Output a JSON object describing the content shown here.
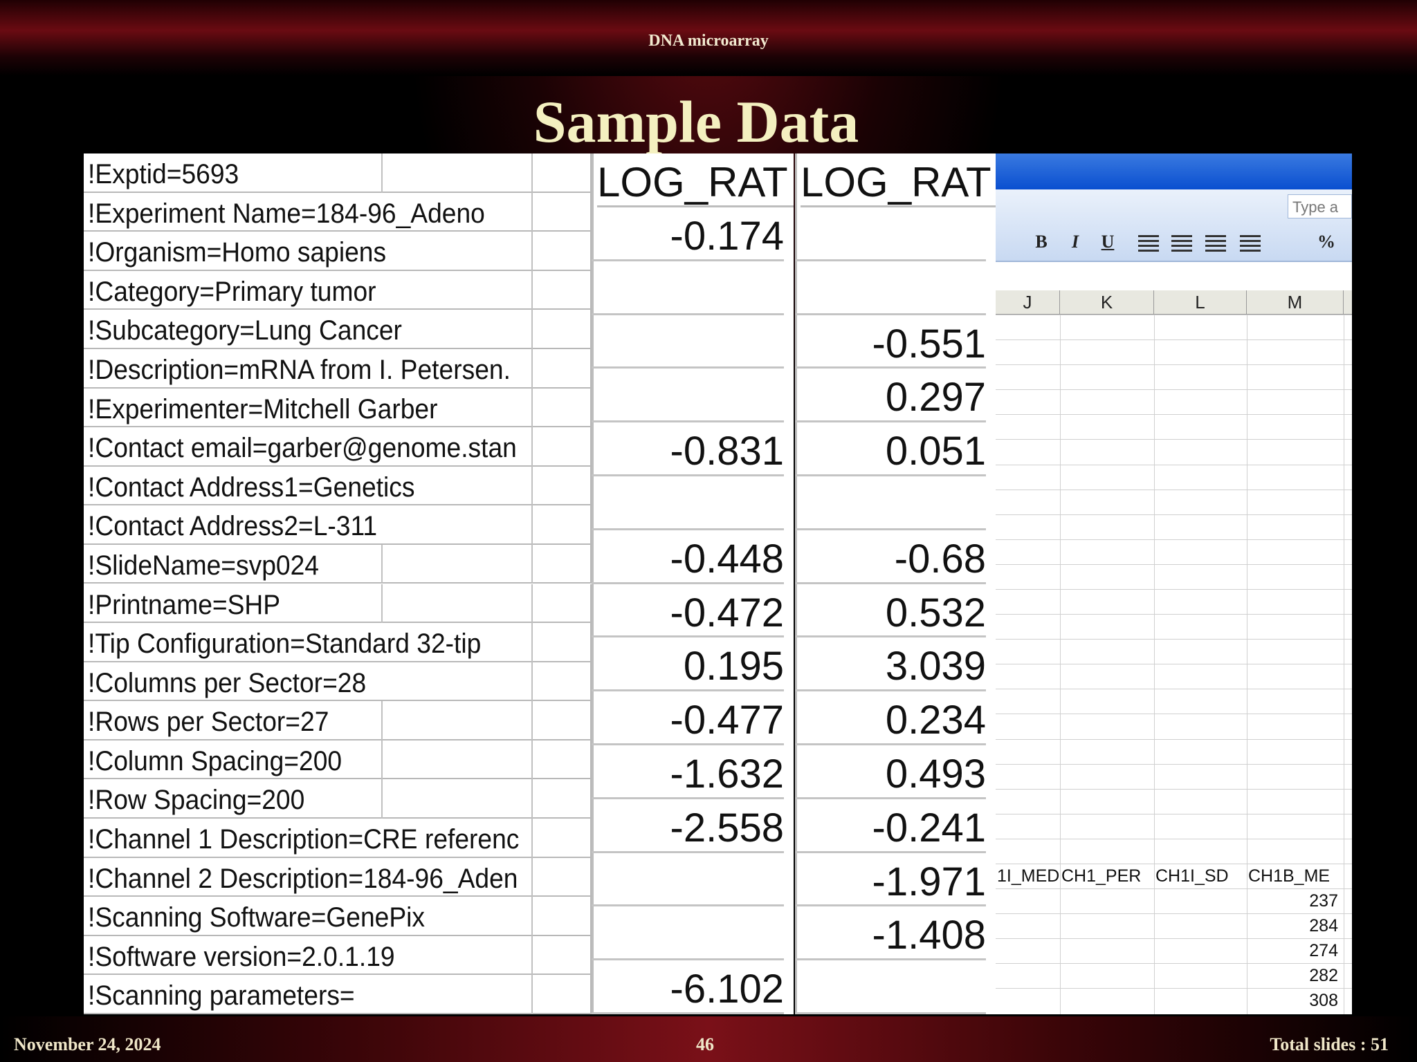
{
  "header": "DNA microarray",
  "title": "Sample Data",
  "metadata_rows": [
    "!Exptid=5693",
    "!Experiment Name=184-96_Adeno",
    "!Organism=Homo sapiens",
    "!Category=Primary tumor",
    "!Subcategory=Lung Cancer",
    "!Description=mRNA from I. Petersen.",
    "!Experimenter=Mitchell Garber",
    "!Contact email=garber@genome.stan",
    "!Contact Address1=Genetics",
    "!Contact Address2=L-311",
    "!SlideName=svp024",
    "!Printname=SHP",
    "!Tip Configuration=Standard 32-tip",
    "!Columns per Sector=28",
    "!Rows per Sector=27",
    "!Column Spacing=200",
    "!Row Spacing=200",
    "!Channel 1 Description=CRE referenc",
    "!Channel 2 Description=184-96_Aden",
    "!Scanning Software=GenePix",
    "!Software version=2.0.1.19",
    "!Scanning parameters="
  ],
  "log_ratio_columns": [
    {
      "header": "LOG_RAT",
      "values": [
        -0.174,
        null,
        null,
        null,
        -0.831,
        null,
        -0.448,
        -0.472,
        0.195,
        -0.477,
        -1.632,
        -2.558,
        null,
        null,
        -6.102
      ]
    },
    {
      "header": "LOG_RAT",
      "values": [
        null,
        null,
        -0.551,
        0.297,
        0.051,
        null,
        -0.68,
        0.532,
        3.039,
        0.234,
        0.493,
        -0.241,
        -1.971,
        -1.408,
        null
      ]
    }
  ],
  "excel": {
    "search_box": "Type a",
    "toolbar": [
      "B",
      "I",
      "U",
      "%"
    ],
    "column_letters": [
      "J",
      "K",
      "L",
      "M"
    ],
    "field_headers": [
      "1I_MED",
      "CH1_PER",
      "CH1I_SD",
      "CH1B_ME"
    ],
    "m_values": [
      237,
      284,
      274,
      282,
      308
    ]
  },
  "footer": {
    "date": "November 24, 2024",
    "slide_number": 46,
    "total": "Total slides : 51"
  }
}
